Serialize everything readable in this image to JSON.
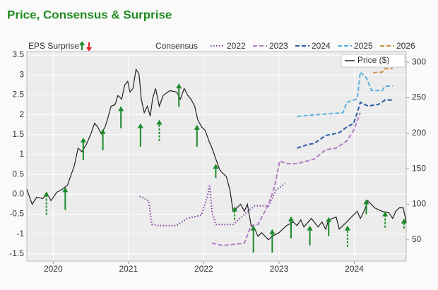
{
  "chart_data": {
    "type": "line",
    "title": "Price, Consensus & Surprise",
    "surprise_label": "EPS Surprise",
    "consensus_label": "Consensus",
    "xlim": [
      2019.65,
      2024.69
    ],
    "xticks": [
      2020,
      2021,
      2022,
      2023,
      2024
    ],
    "ylim": [
      -1.68,
      3.59
    ],
    "yticks": [
      3.5,
      3,
      2.5,
      2,
      1.5,
      1,
      0.5,
      {
        "value": 0,
        "label": "0.0"
      },
      -0.5,
      -1,
      -1.5
    ],
    "y2lim": [
      20,
      315
    ],
    "y2ticks": [
      300,
      250,
      200,
      150,
      100,
      50
    ],
    "grid": true,
    "series": [
      {
        "name": "2022",
        "color": "#7b3f9e",
        "dash": "dotted",
        "x": [
          2021.15,
          2021.27,
          2021.31,
          2021.41,
          2021.64,
          2021.78,
          2021.97,
          2022.05,
          2022.08,
          2022.11,
          2022.16,
          2022.39,
          2022.58,
          2022.68,
          2022.86,
          2022.96,
          2023.08
        ],
        "values": [
          -0.05,
          -0.17,
          -0.76,
          -0.79,
          -0.79,
          -0.61,
          -0.52,
          -0.05,
          0.24,
          -0.44,
          -0.76,
          -0.76,
          -0.44,
          -0.29,
          -0.29,
          0.1,
          0.27
        ]
      },
      {
        "name": "2023",
        "color": "#b07cc6",
        "dash": "dashed",
        "x": [
          2022.11,
          2022.25,
          2022.54,
          2022.63,
          2022.72,
          2022.86,
          2022.94,
          2023.01,
          2023.1,
          2023.24,
          2023.38,
          2023.47,
          2023.62,
          2023.76,
          2023.9,
          2023.99,
          2024.08
        ],
        "values": [
          -1.23,
          -1.29,
          -1.23,
          -0.79,
          -0.76,
          -0.26,
          0.18,
          0.84,
          0.77,
          0.77,
          0.84,
          0.89,
          1.12,
          1.16,
          1.34,
          1.6,
          2.05
        ]
      },
      {
        "name": "2024",
        "color": "#2a5ca8",
        "dash": "dashed",
        "x": [
          2023.24,
          2023.38,
          2023.47,
          2023.62,
          2023.71,
          2023.8,
          2023.9,
          2023.99,
          2024.04,
          2024.08,
          2024.18,
          2024.32,
          2024.41,
          2024.51
        ],
        "values": [
          1.16,
          1.25,
          1.28,
          1.48,
          1.51,
          1.55,
          1.69,
          1.78,
          2.05,
          2.31,
          2.22,
          2.26,
          2.37,
          2.37
        ]
      },
      {
        "name": "2025",
        "color": "#5aaee0",
        "dash": "dashed",
        "x": [
          2023.24,
          2023.57,
          2023.85,
          2023.9,
          2024.04,
          2024.08,
          2024.16,
          2024.23,
          2024.37,
          2024.41,
          2024.51
        ],
        "values": [
          1.96,
          2.01,
          2.05,
          2.31,
          2.4,
          3.07,
          2.93,
          2.61,
          2.61,
          2.72,
          2.72
        ]
      },
      {
        "name": "2026",
        "color": "#c88a3a",
        "dash": "dashed",
        "x": [
          2024.25,
          2024.37,
          2024.41,
          2024.51
        ],
        "values": [
          3.06,
          3.07,
          3.16,
          3.16
        ]
      },
      {
        "name": "Price ($)",
        "color": "#222222",
        "dash": "solid",
        "axis": "y2",
        "x": [
          2019.65,
          2019.72,
          2019.78,
          2019.86,
          2019.92,
          2019.97,
          2020.05,
          2020.12,
          2020.19,
          2020.23,
          2020.28,
          2020.33,
          2020.38,
          2020.44,
          2020.5,
          2020.55,
          2020.59,
          2020.64,
          2020.69,
          2020.72,
          2020.77,
          2020.82,
          2020.86,
          2020.91,
          2020.95,
          2020.99,
          2021.02,
          2021.06,
          2021.1,
          2021.14,
          2021.17,
          2021.21,
          2021.25,
          2021.29,
          2021.32,
          2021.36,
          2021.41,
          2021.46,
          2021.55,
          2021.64,
          2021.69,
          2021.74,
          2021.79,
          2021.83,
          2021.88,
          2021.92,
          2021.97,
          2022.02,
          2022.07,
          2022.11,
          2022.16,
          2022.21,
          2022.25,
          2022.3,
          2022.35,
          2022.39,
          2022.44,
          2022.49,
          2022.54,
          2022.58,
          2022.63,
          2022.68,
          2022.72,
          2022.77,
          2022.86,
          2022.91,
          2023.0,
          2023.1,
          2023.19,
          2023.24,
          2023.29,
          2023.33,
          2023.43,
          2023.52,
          2023.57,
          2023.62,
          2023.66,
          2023.76,
          2023.8,
          2023.9,
          2023.99,
          2024.04,
          2024.08,
          2024.13,
          2024.18,
          2024.27,
          2024.37,
          2024.46,
          2024.51,
          2024.55,
          2024.6,
          2024.65,
          2024.69
        ],
        "values": [
          121,
          100,
          110,
          108,
          115,
          105,
          117,
          121,
          127,
          139,
          154,
          179,
          174,
          184,
          199,
          214,
          209,
          199,
          209,
          219,
          238,
          240,
          253,
          248,
          268,
          273,
          258,
          263,
          290,
          283,
          248,
          229,
          238,
          224,
          248,
          263,
          238,
          253,
          260,
          258,
          248,
          263,
          253,
          248,
          238,
          219,
          209,
          204,
          189,
          179,
          164,
          149,
          144,
          139,
          119,
          90,
          95,
          100,
          90,
          100,
          70,
          65,
          55,
          60,
          50,
          55,
          60,
          70,
          75,
          70,
          78,
          68,
          80,
          68,
          75,
          65,
          78,
          82,
          65,
          75,
          85,
          90,
          80,
          90,
          105,
          95,
          90,
          88,
          80,
          90,
          95,
          95,
          75
        ]
      }
    ],
    "surprises": {
      "up_color": "#1a8a2a",
      "down_color": "#dd2222",
      "x": [
        2019.91,
        2020.16,
        2020.4,
        2020.66,
        2020.9,
        2021.16,
        2021.41,
        2021.67,
        2021.91,
        2022.16,
        2022.41,
        2022.66,
        2022.91,
        2023.16,
        2023.41,
        2023.66,
        2023.91,
        2024.16,
        2024.41,
        2024.66
      ],
      "from": [
        85,
        92,
        162,
        176,
        207,
        181,
        189,
        237,
        181,
        137,
        78,
        32,
        32,
        52,
        42,
        55,
        40,
        86,
        67,
        66
      ],
      "to": [
        118,
        124,
        194,
        206,
        238,
        214,
        219,
        270,
        212,
        157,
        97,
        70,
        65,
        83,
        70,
        82,
        70,
        107,
        90,
        80
      ],
      "dashed": [
        true,
        false,
        false,
        false,
        false,
        false,
        true,
        false,
        false,
        false,
        true,
        false,
        false,
        false,
        false,
        false,
        true,
        false,
        true,
        true
      ]
    }
  }
}
